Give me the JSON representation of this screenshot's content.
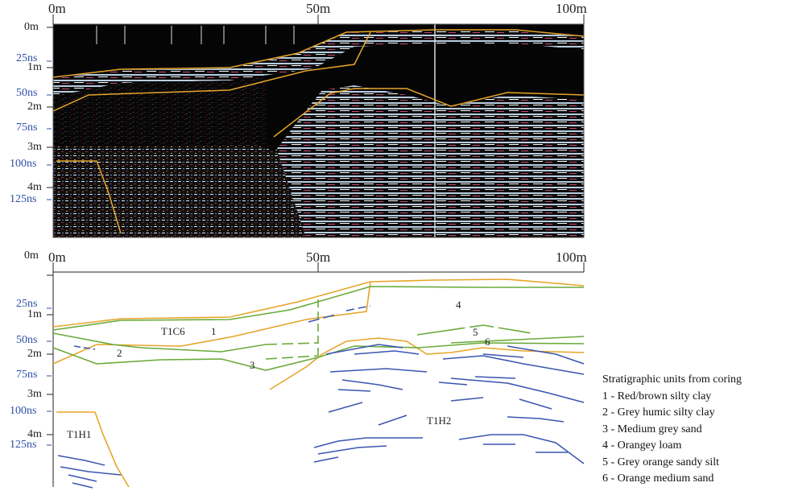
{
  "top_panel": {
    "distance_labels": [
      "0m",
      "50m",
      "100m"
    ],
    "depth_labels": [
      "0m",
      "1m",
      "2m",
      "3m",
      "4m"
    ],
    "time_labels": [
      "25ns",
      "50ns",
      "75ns",
      "100ns",
      "125ns"
    ]
  },
  "bottom_panel": {
    "distance_labels": [
      "0m",
      "50m",
      "100m"
    ],
    "depth_labels": [
      "0m",
      "1m",
      "2m",
      "3m",
      "4m"
    ],
    "time_labels": [
      "25ns",
      "50ns",
      "75ns",
      "100ns",
      "125ns"
    ],
    "unit_labels": [
      "T1C6",
      "1",
      "2",
      "3",
      "4",
      "5",
      "6",
      "T1H1",
      "T1H2"
    ]
  },
  "legend": {
    "title": "Stratigraphic units from coring",
    "items": [
      "1 - Red/brown silty clay",
      "2 - Grey humic silty clay",
      "3 - Medium grey sand",
      "4 - Orangey loam",
      "5 - Grey orange sandy silt",
      "6 - Orange medium sand"
    ]
  },
  "colors": {
    "orange_line": "#e6a52a",
    "green_line": "#6aaa3a",
    "blue_line": "#3a55b0",
    "depth_text": "#222222",
    "time_text": "#2d4fa6"
  }
}
